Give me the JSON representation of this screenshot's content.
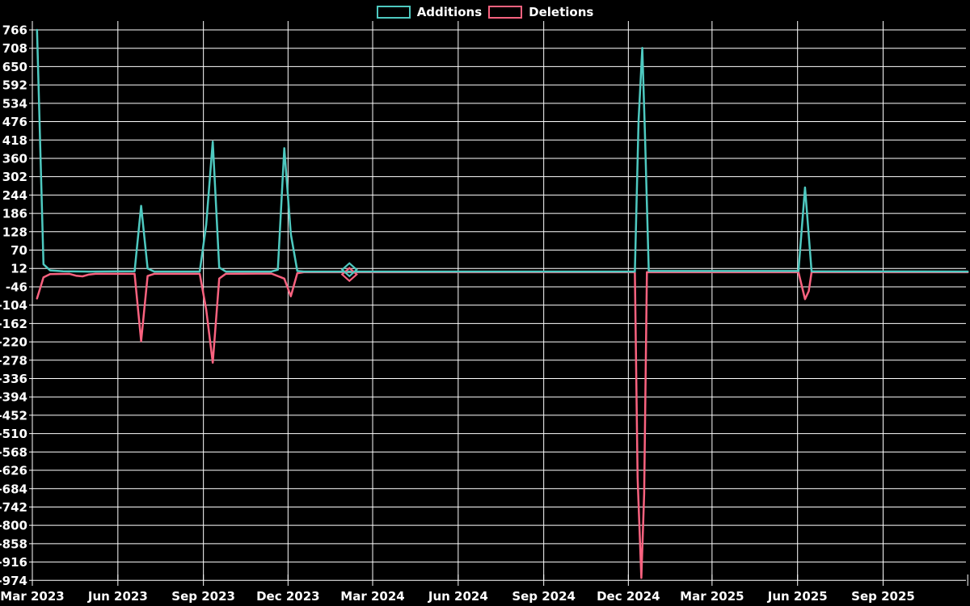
{
  "colors": {
    "background": "#000000",
    "grid": "#ffffff",
    "text": "#ffffff",
    "additions": "#4EC9C0",
    "deletions": "#F9627F"
  },
  "legend": {
    "items": [
      {
        "label": "Additions",
        "color": "#4EC9C0"
      },
      {
        "label": "Deletions",
        "color": "#F9627F"
      }
    ]
  },
  "chart_data": {
    "type": "line",
    "title": "",
    "xlabel": "",
    "ylabel": "",
    "grid": true,
    "legend_position": "top-center",
    "y_axis": {
      "max": 766,
      "min": -974,
      "step": 58
    },
    "x_axis": {
      "origin_date": "2023-03-01",
      "ticks": [
        {
          "label": "Mar 2023",
          "date": "2023-03-01"
        },
        {
          "label": "Jun 2023",
          "date": "2023-06-01"
        },
        {
          "label": "Sep 2023",
          "date": "2023-09-01"
        },
        {
          "label": "Dec 2023",
          "date": "2023-12-01"
        },
        {
          "label": "Mar 2024",
          "date": "2024-03-01"
        },
        {
          "label": "Jun 2024",
          "date": "2024-06-01"
        },
        {
          "label": "Sep 2024",
          "date": "2024-09-01"
        },
        {
          "label": "Dec 2024",
          "date": "2024-12-01"
        },
        {
          "label": "Mar 2025",
          "date": "2025-03-01"
        },
        {
          "label": "Jun 2025",
          "date": "2025-06-01"
        },
        {
          "label": "Sep 2025",
          "date": "2025-09-01"
        }
      ],
      "extra_tick_date": "2025-12-01"
    },
    "series": [
      {
        "name": "Additions",
        "color": "#4EC9C0",
        "points": [
          [
            "2023-03-06",
            766
          ],
          [
            "2023-03-13",
            25
          ],
          [
            "2023-03-20",
            6
          ],
          [
            "2023-04-03",
            3
          ],
          [
            "2023-05-01",
            2
          ],
          [
            "2023-06-19",
            3
          ],
          [
            "2023-06-26",
            210
          ],
          [
            "2023-07-03",
            12
          ],
          [
            "2023-07-10",
            2
          ],
          [
            "2023-08-28",
            2
          ],
          [
            "2023-09-04",
            150
          ],
          [
            "2023-09-11",
            413
          ],
          [
            "2023-09-18",
            15
          ],
          [
            "2023-09-25",
            2
          ],
          [
            "2023-11-13",
            2
          ],
          [
            "2023-11-20",
            8
          ],
          [
            "2023-11-27",
            392
          ],
          [
            "2023-12-04",
            120
          ],
          [
            "2023-12-11",
            4
          ],
          [
            "2023-12-18",
            2
          ],
          [
            "2024-12-08",
            2
          ],
          [
            "2024-12-12",
            480
          ],
          [
            "2024-12-16",
            709
          ],
          [
            "2024-12-19",
            426
          ],
          [
            "2024-12-23",
            4
          ],
          [
            "2025-06-02",
            4
          ],
          [
            "2025-06-09",
            268
          ],
          [
            "2025-06-16",
            3
          ],
          [
            "2025-12-01",
            2
          ]
        ]
      },
      {
        "name": "Deletions",
        "color": "#F9627F",
        "points": [
          [
            "2023-03-06",
            -83
          ],
          [
            "2023-03-13",
            -16
          ],
          [
            "2023-03-20",
            -6
          ],
          [
            "2023-04-10",
            -5
          ],
          [
            "2023-04-17",
            -11
          ],
          [
            "2023-04-24",
            -13
          ],
          [
            "2023-05-01",
            -7
          ],
          [
            "2023-05-08",
            -5
          ],
          [
            "2023-06-19",
            -5
          ],
          [
            "2023-06-26",
            -218
          ],
          [
            "2023-07-03",
            -12
          ],
          [
            "2023-07-10",
            -5
          ],
          [
            "2023-08-28",
            -5
          ],
          [
            "2023-09-04",
            -118
          ],
          [
            "2023-09-11",
            -286
          ],
          [
            "2023-09-18",
            -20
          ],
          [
            "2023-09-25",
            -5
          ],
          [
            "2023-11-13",
            -4
          ],
          [
            "2023-11-27",
            -20
          ],
          [
            "2023-12-04",
            -76
          ],
          [
            "2023-12-11",
            -3
          ],
          [
            "2023-12-18",
            0
          ],
          [
            "2024-12-08",
            0
          ],
          [
            "2024-12-11",
            -650
          ],
          [
            "2024-12-15",
            -966
          ],
          [
            "2024-12-18",
            -700
          ],
          [
            "2024-12-21",
            0
          ],
          [
            "2025-06-02",
            0
          ],
          [
            "2025-06-09",
            -85
          ],
          [
            "2025-06-13",
            -60
          ],
          [
            "2025-06-16",
            0
          ],
          [
            "2025-12-01",
            0
          ]
        ]
      }
    ],
    "markers": [
      {
        "series": "Deletions",
        "date": "2024-02-05",
        "value": -7,
        "shape": "diamond"
      },
      {
        "series": "Additions",
        "date": "2024-02-05",
        "value": 8,
        "shape": "diamond"
      }
    ]
  }
}
